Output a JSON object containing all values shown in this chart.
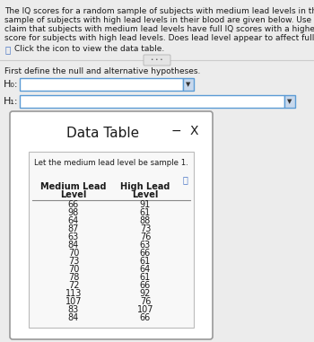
{
  "title_text": "The IQ scores for a random sample of subjects with medium lead levels in their blood and another random\nsample of subjects with high lead levels in their blood are given below. Use a 0.05 significance level to test the\nclaim that subjects with medium lead levels have full IQ scores with a higher median that the median full IQ\nscore for subjects with high lead levels. Does lead level appear to affect full IQ scores?",
  "click_text": "Click the icon to view the data table.",
  "first_define_text": "First define the null and alternative hypotheses.",
  "h0_label": "H₀:",
  "h1_label": "H₁:",
  "data_table_title": "Data Table",
  "inner_note": "Let the medium lead level be sample 1.",
  "col1_header_line1": "Medium Lead",
  "col1_header_line2": "Level",
  "col2_header_line1": "High Lead",
  "col2_header_line2": "Level",
  "medium_lead": [
    66,
    98,
    64,
    87,
    63,
    84,
    70,
    73,
    70,
    78,
    72,
    113,
    107,
    83,
    84
  ],
  "high_lead": [
    91,
    61,
    88,
    73,
    76,
    63,
    66,
    61,
    64,
    61,
    66,
    92,
    76,
    107,
    66
  ],
  "bg_color": "#ececec",
  "white": "#ffffff",
  "blue_border": "#5b9bd5",
  "text_color": "#1a1a1a",
  "icon_color": "#4472c4",
  "table_bg": "#f5f5f5",
  "title_fontsize": 6.5,
  "body_fontsize": 7.5,
  "table_fontsize": 7.0,
  "minus_symbol": "−",
  "x_symbol": "X"
}
